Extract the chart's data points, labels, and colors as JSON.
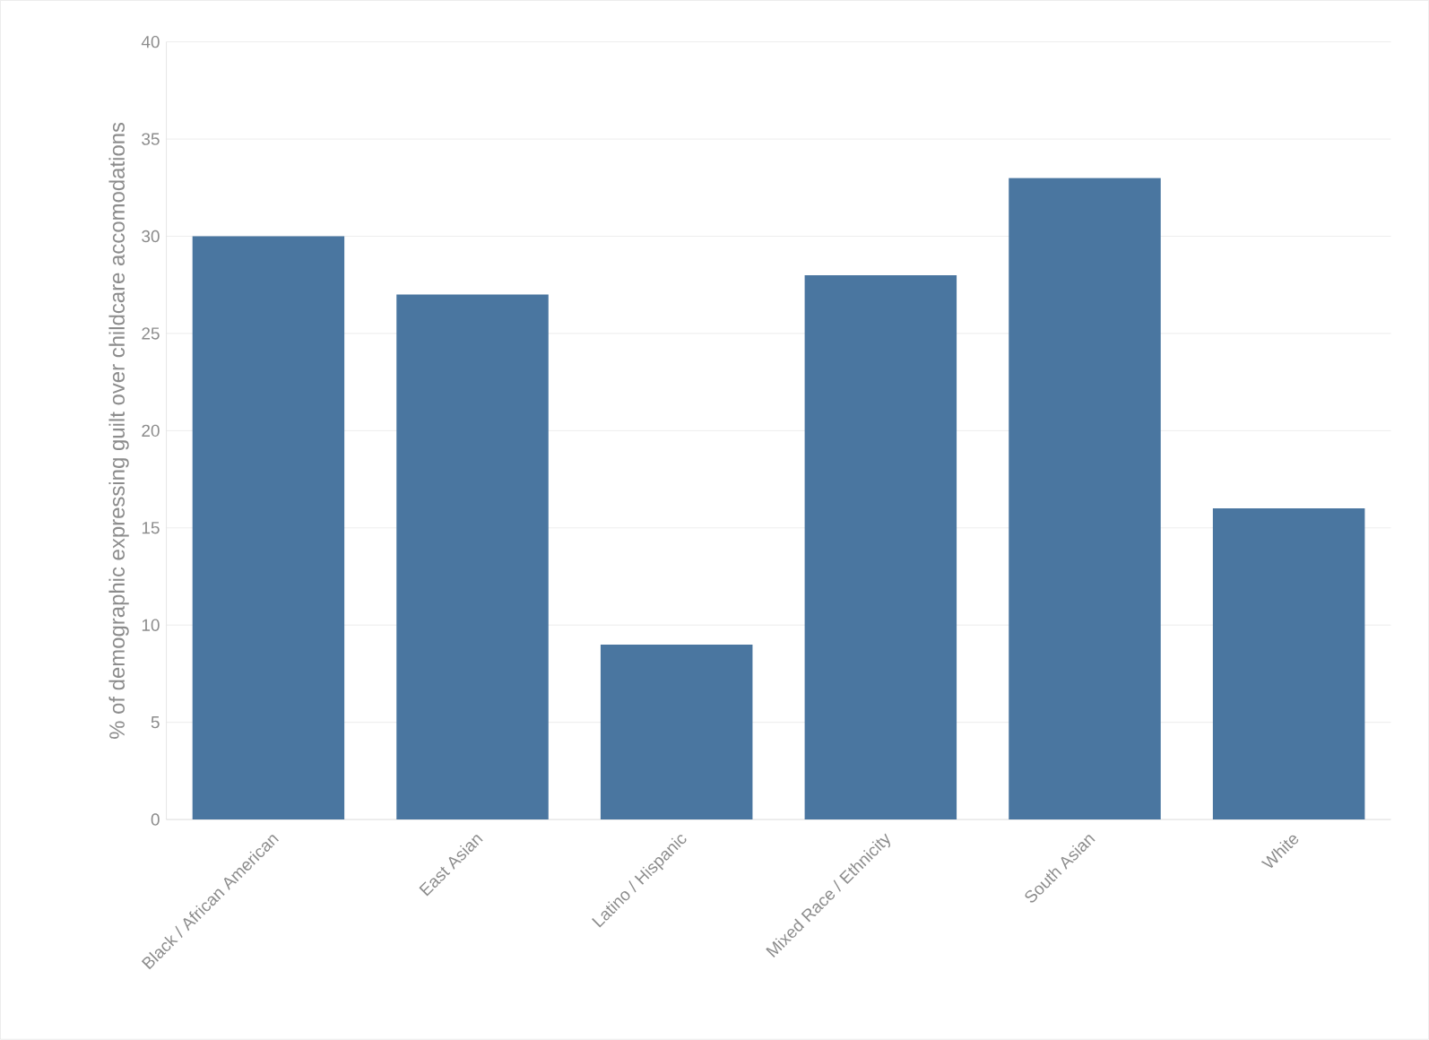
{
  "chart_data": {
    "type": "bar",
    "ylabel": "% of demographic expressing guilt over childcare accomodations",
    "categories": [
      "Black / African American",
      "East Asian",
      "Latino / Hispanic",
      "Mixed Race / Ethnicity",
      "South Asian",
      "White"
    ],
    "values": [
      30,
      27,
      9,
      28,
      33,
      16
    ],
    "color": "#4a76a0",
    "ylim": [
      0,
      40
    ],
    "yticks": [
      0,
      5,
      10,
      15,
      20,
      25,
      30,
      35,
      40
    ],
    "grid": "y"
  }
}
